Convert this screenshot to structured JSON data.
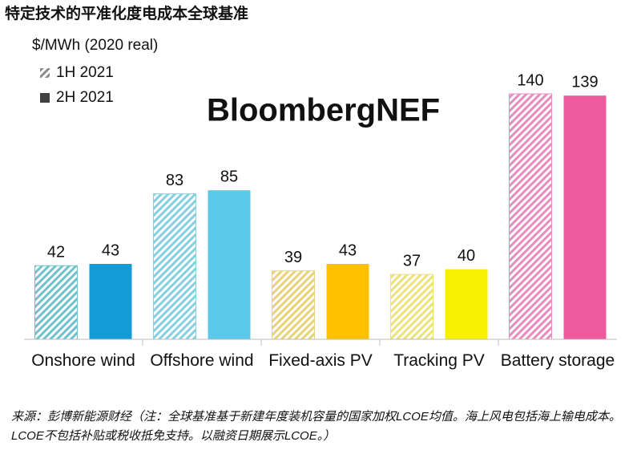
{
  "chart_data": {
    "type": "bar",
    "title": "特定技术的平准化度电成本全球基准",
    "y_label": "$/MWh (2020 real)",
    "watermark": "BloombergNEF",
    "source": "来源：彭博新能源财经（注：全球基准基于新建年度装机容量的国家加权LCOE均值。海上风电包括海上输电成本。LCOE不包括补贴或税收抵免支持。以融资日期展示LCOE。）",
    "categories": [
      "Onshore wind",
      "Offshore wind",
      "Fixed-axis PV",
      "Tracking PV",
      "Battery storage"
    ],
    "series": [
      {
        "name": "1H 2021",
        "color": "#8c8c8c",
        "hatched": true,
        "colors": [
          "#6fc2cc",
          "#86cfe0",
          "#e8d27a",
          "#ece27a",
          "#e88cbf"
        ],
        "values": [
          42,
          83,
          39,
          37,
          140
        ]
      },
      {
        "name": "2H 2021",
        "color": "#404040",
        "hatched": false,
        "colors": [
          "#139bd6",
          "#5cc8ea",
          "#ffc000",
          "#f7f000",
          "#ee5a9b"
        ],
        "values": [
          43,
          85,
          43,
          40,
          139
        ]
      }
    ],
    "ylim": [
      0,
      140
    ]
  }
}
